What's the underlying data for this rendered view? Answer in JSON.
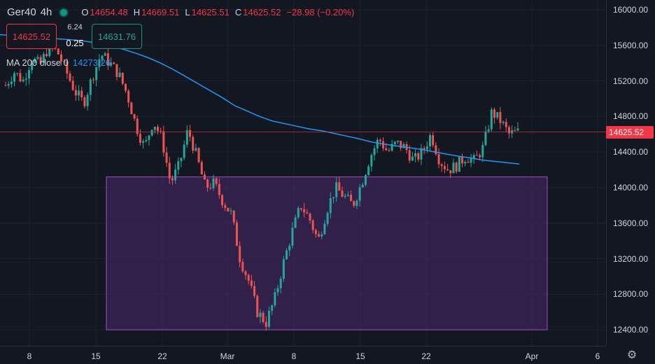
{
  "legend": {
    "symbol": "Ger40",
    "interval": "4h",
    "open_label": "O",
    "open": "14654.48",
    "high_label": "H",
    "high": "14669.51",
    "low_label": "L",
    "low": "14625.51",
    "close_label": "C",
    "close": "14625.52",
    "change": "−28.98 (−0.20%)"
  },
  "trade": {
    "sell_price": "14625.52",
    "buy_price": "14631.76",
    "spread_top": "6.24",
    "spread_bottom": "0.25"
  },
  "ma": {
    "label": "MA 200 close 0",
    "value": "14273.26"
  },
  "price_label": "14625.52",
  "colors": {
    "background": "#131722",
    "up": "#26a69a",
    "down": "#ef5350",
    "ma_line": "#2196f3",
    "zone_fill": "#4b2a6b",
    "zone_border": "#9c4dc9",
    "price_line": "#f23645"
  },
  "icons": {
    "settings": "gear-icon"
  },
  "chart_data": {
    "type": "candlestick",
    "y_ticks": [
      "16000.00",
      "15600.00",
      "15200.00",
      "14800.00",
      "14400.00",
      "14000.00",
      "13600.00",
      "13200.00",
      "12800.00",
      "12400.00"
    ],
    "x_ticks": [
      "8",
      "15",
      "22",
      "Mar",
      "8",
      "15",
      "22",
      "Apr",
      "6"
    ],
    "ylim": [
      12220,
      16110
    ],
    "current_price": 14625.52,
    "zone": {
      "from": "Feb 16",
      "to": "Apr 1",
      "low": 12400,
      "high": 14120
    },
    "ma_series": [
      15720,
      15710,
      15700,
      15690,
      15680,
      15670,
      15660,
      15645,
      15620,
      15590,
      15555,
      15510,
      15460,
      15400,
      15330,
      15250,
      15170,
      15090,
      15010,
      14920,
      14860,
      14800,
      14750,
      14720,
      14690,
      14660,
      14640,
      14610,
      14580,
      14550,
      14515,
      14490,
      14470,
      14450,
      14430,
      14405,
      14380,
      14355,
      14335,
      14310,
      14295,
      14280,
      14265
    ],
    "candles_path": [
      15150,
      15300,
      15200,
      15450,
      15380,
      15600,
      15520,
      15300,
      15080,
      14950,
      15250,
      15500,
      15400,
      15280,
      15050,
      14700,
      14450,
      14750,
      14550,
      14050,
      14250,
      14650,
      14350,
      14000,
      14050,
      13850,
      13700,
      13200,
      12950,
      12600,
      12480,
      12750,
      13150,
      13500,
      13800,
      13650,
      13400,
      13750,
      14000,
      13900,
      13800,
      14050,
      14350,
      14550,
      14400,
      14500,
      14450,
      14300,
      14400,
      14600,
      14300,
      14200,
      14250,
      14350,
      14300,
      14450,
      14850,
      14750,
      14600,
      14625
    ]
  }
}
